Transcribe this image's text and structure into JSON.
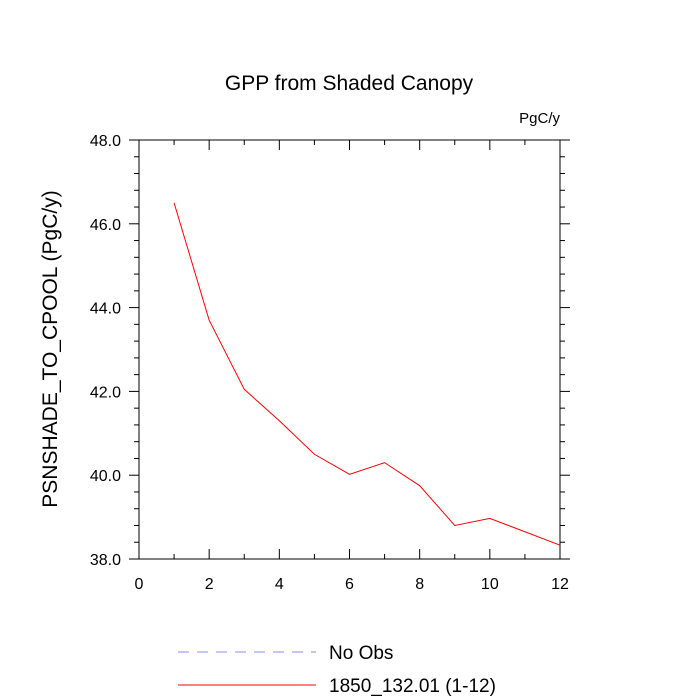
{
  "chart_data": {
    "type": "line",
    "title": "GPP from Shaded Canopy",
    "units_label": "PgC/y",
    "ylabel": "PSNSHADE_TO_CPOOL  (PgC/y)",
    "xlabel": "",
    "xlim": [
      0,
      12
    ],
    "ylim": [
      38.0,
      48.0
    ],
    "x_ticks": [
      0,
      2,
      4,
      6,
      8,
      10,
      12
    ],
    "x_tick_labels": [
      "0",
      "2",
      "4",
      "6",
      "8",
      "10",
      "12"
    ],
    "y_ticks": [
      38.0,
      40.0,
      42.0,
      44.0,
      46.0,
      48.0
    ],
    "y_tick_labels": [
      "38.0",
      "40.0",
      "42.0",
      "44.0",
      "46.0",
      "48.0"
    ],
    "grid": false,
    "legend_position": "bottom",
    "series": [
      {
        "name": "1850_132.01 (1-12)",
        "color": "#ff0000",
        "style": "solid",
        "x": [
          1,
          2,
          3,
          4,
          5,
          6,
          7,
          8,
          9,
          10,
          11,
          12
        ],
        "y": [
          46.5,
          43.7,
          42.05,
          41.3,
          40.5,
          40.02,
          40.3,
          39.75,
          38.8,
          38.97,
          38.65,
          38.33
        ]
      }
    ],
    "legend": [
      {
        "label": "No Obs",
        "color": "#8888ff",
        "style": "dashed"
      },
      {
        "label": "1850_132.01 (1-12)",
        "color": "#ff0000",
        "style": "solid"
      }
    ]
  }
}
